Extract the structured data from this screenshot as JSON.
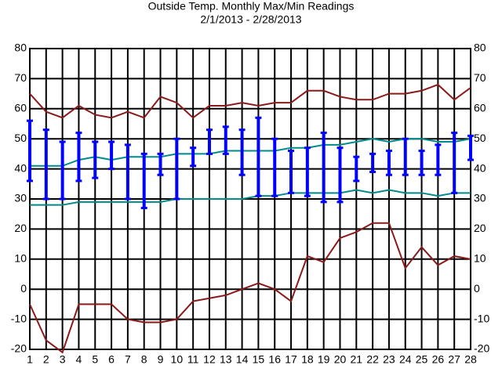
{
  "chart_data": {
    "type": "line",
    "title": "Outside Temp. Monthly Max/Min Readings",
    "subtitle": "2/1/2013 - 2/28/2013",
    "x": [
      1,
      2,
      3,
      4,
      5,
      6,
      7,
      8,
      9,
      10,
      11,
      12,
      13,
      14,
      15,
      16,
      17,
      18,
      19,
      20,
      21,
      22,
      23,
      24,
      25,
      26,
      27,
      28
    ],
    "xlim": [
      1,
      28
    ],
    "xticks": [
      1,
      2,
      3,
      4,
      5,
      6,
      7,
      8,
      9,
      10,
      11,
      12,
      13,
      14,
      15,
      16,
      17,
      18,
      19,
      20,
      21,
      22,
      23,
      24,
      25,
      26,
      27,
      28
    ],
    "ylim": [
      -20,
      80
    ],
    "yticks": [
      -20,
      -10,
      0,
      10,
      20,
      30,
      40,
      50,
      60,
      70,
      80
    ],
    "grid": true,
    "series": [
      {
        "color": "#8b1a1a",
        "values": [
          65,
          59,
          57,
          61,
          58,
          57,
          59,
          57,
          64,
          62,
          57,
          61,
          61,
          62,
          61,
          62,
          62,
          66,
          66,
          64,
          63,
          63,
          65,
          65,
          66,
          68,
          63,
          67
        ]
      },
      {
        "color": "#8b1a1a",
        "values": [
          -5,
          -17,
          -21,
          -5,
          -5,
          -5,
          -10,
          -11,
          -11,
          -10,
          -4,
          -3,
          -2,
          0,
          2,
          0,
          -4,
          11,
          9,
          17,
          19,
          22,
          22,
          7,
          14,
          8,
          11,
          10
        ]
      },
      {
        "color": "#008b8b",
        "values": [
          41,
          41,
          41,
          43,
          44,
          43,
          44,
          44,
          44,
          45,
          45,
          45,
          46,
          46,
          46,
          46,
          47,
          47,
          48,
          48,
          49,
          50,
          49,
          50,
          50,
          49,
          49,
          50
        ]
      },
      {
        "color": "#008b8b",
        "values": [
          28,
          28,
          28,
          29,
          29,
          29,
          29,
          29,
          29,
          30,
          30,
          30,
          30,
          30,
          31,
          31,
          32,
          32,
          32,
          32,
          33,
          32,
          33,
          32,
          32,
          31,
          32,
          32
        ]
      }
    ],
    "ranges": {
      "color": "#0000ff",
      "high": [
        56,
        53,
        49,
        52,
        49,
        49,
        48,
        45,
        45,
        50,
        47,
        53,
        54,
        53,
        57,
        50,
        46,
        47,
        52,
        47,
        44,
        45,
        46,
        50,
        46,
        48,
        52,
        51
      ],
      "low": [
        36,
        30,
        30,
        36,
        37,
        40,
        30,
        27,
        38,
        30,
        41,
        45,
        45,
        38,
        31,
        31,
        32,
        31,
        29,
        29,
        36,
        39,
        38,
        38,
        38,
        38,
        32,
        43
      ]
    }
  }
}
